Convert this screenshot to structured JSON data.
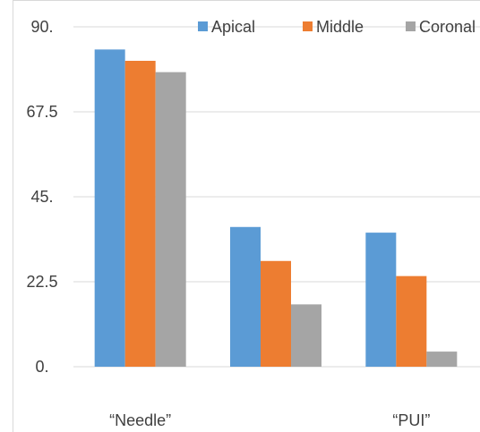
{
  "chart_data": {
    "type": "bar",
    "title": "",
    "xlabel": "",
    "ylabel": "",
    "ylim": [
      0,
      90
    ],
    "y_ticks": [
      0,
      22.5,
      45,
      67.5,
      90
    ],
    "y_tick_labels": [
      "0.",
      "22.5",
      "45.",
      "67.5",
      "90."
    ],
    "categories": [
      "“Needle”",
      "",
      "“PUI”"
    ],
    "series": [
      {
        "name": "Apical",
        "color": "#5b9bd5",
        "values": [
          84,
          37,
          35.5
        ]
      },
      {
        "name": "Middle",
        "color": "#ed7d31",
        "values": [
          81,
          28,
          24
        ]
      },
      {
        "name": "Coronal",
        "color": "#a5a5a5",
        "values": [
          78,
          16.5,
          4
        ]
      }
    ],
    "legend_position": "top-right",
    "grid": true
  }
}
